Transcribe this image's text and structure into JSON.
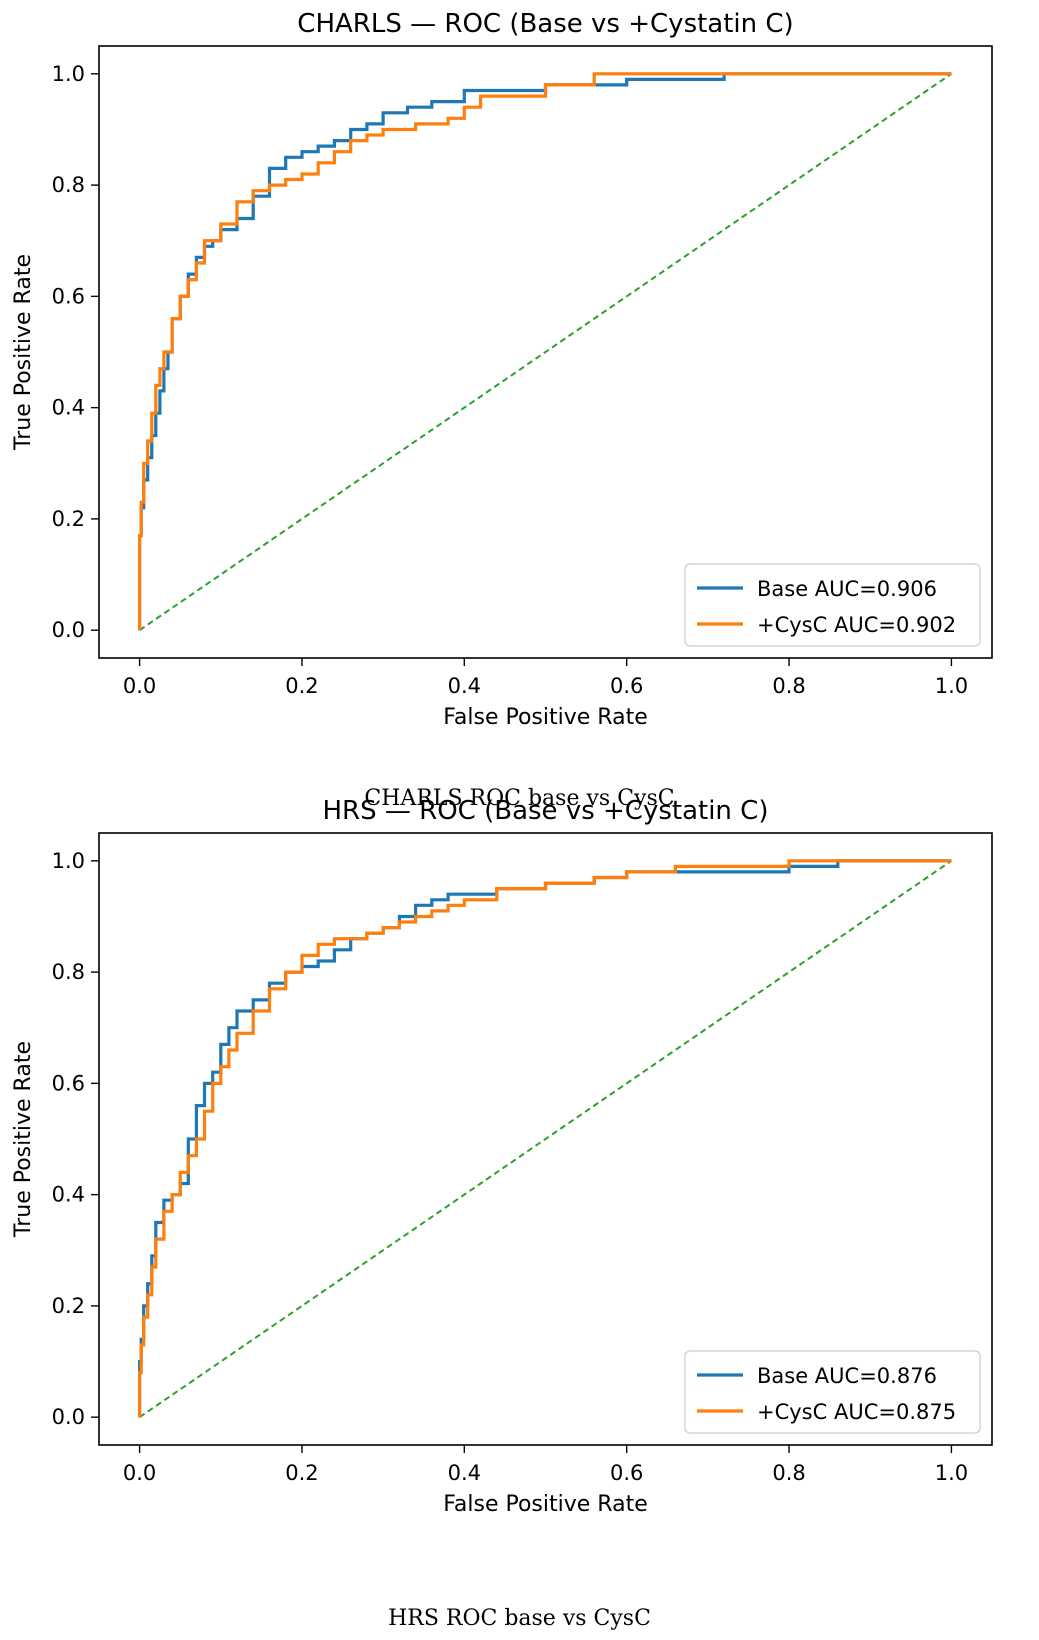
{
  "captions": [
    "CHARLS ROC base vs CysC",
    "HRS ROC base vs CysC"
  ],
  "colors": {
    "base": "#1f77b4",
    "cysc": "#ff7f0e",
    "chance": "#2ca02c"
  },
  "chart_data": [
    {
      "type": "line",
      "title": "CHARLS — ROC (Base vs +Cystatin C)",
      "xlabel": "False Positive Rate",
      "ylabel": "True Positive Rate",
      "xlim": [
        -0.05,
        1.05
      ],
      "ylim": [
        -0.05,
        1.05
      ],
      "xticks": [
        "0.0",
        "0.2",
        "0.4",
        "0.6",
        "0.8",
        "1.0"
      ],
      "yticks": [
        "0.0",
        "0.2",
        "0.4",
        "0.6",
        "0.8",
        "1.0"
      ],
      "legend_position": "lower-right",
      "series": [
        {
          "name": "Base AUC=0.906",
          "color_key": "base",
          "x": [
            0,
            0.002,
            0.005,
            0.01,
            0.015,
            0.02,
            0.025,
            0.03,
            0.035,
            0.04,
            0.05,
            0.06,
            0.07,
            0.08,
            0.09,
            0.1,
            0.12,
            0.14,
            0.16,
            0.18,
            0.2,
            0.22,
            0.24,
            0.26,
            0.28,
            0.3,
            0.33,
            0.36,
            0.4,
            0.44,
            0.5,
            0.56,
            0.6,
            0.66,
            0.72,
            0.8,
            0.86,
            0.92,
            1.0
          ],
          "y": [
            0,
            0.17,
            0.22,
            0.27,
            0.31,
            0.35,
            0.39,
            0.43,
            0.47,
            0.5,
            0.56,
            0.6,
            0.64,
            0.67,
            0.69,
            0.7,
            0.72,
            0.74,
            0.78,
            0.83,
            0.85,
            0.86,
            0.87,
            0.88,
            0.9,
            0.91,
            0.93,
            0.94,
            0.95,
            0.97,
            0.97,
            0.98,
            0.98,
            0.99,
            0.99,
            1.0,
            1.0,
            1.0,
            1.0
          ]
        },
        {
          "name": "+CysC AUC=0.902",
          "color_key": "cysc",
          "x": [
            0,
            0.002,
            0.005,
            0.01,
            0.015,
            0.02,
            0.025,
            0.03,
            0.04,
            0.05,
            0.06,
            0.07,
            0.08,
            0.1,
            0.12,
            0.14,
            0.16,
            0.18,
            0.2,
            0.22,
            0.24,
            0.26,
            0.28,
            0.3,
            0.34,
            0.38,
            0.4,
            0.42,
            0.44,
            0.5,
            0.56,
            0.58,
            0.6,
            0.7,
            0.8,
            0.9,
            1.0
          ],
          "y": [
            0,
            0.17,
            0.23,
            0.3,
            0.34,
            0.39,
            0.44,
            0.47,
            0.5,
            0.56,
            0.6,
            0.63,
            0.66,
            0.7,
            0.73,
            0.77,
            0.79,
            0.8,
            0.81,
            0.82,
            0.84,
            0.86,
            0.88,
            0.89,
            0.9,
            0.91,
            0.92,
            0.94,
            0.96,
            0.96,
            0.98,
            1.0,
            1.0,
            1.0,
            1.0,
            1.0,
            1.0
          ]
        },
        {
          "name": "chance",
          "color_key": "chance",
          "dashed": true,
          "x": [
            0,
            1
          ],
          "y": [
            0,
            1
          ]
        }
      ]
    },
    {
      "type": "line",
      "title": "HRS — ROC (Base vs +Cystatin C)",
      "xlabel": "False Positive Rate",
      "ylabel": "True Positive Rate",
      "xlim": [
        -0.05,
        1.05
      ],
      "ylim": [
        -0.05,
        1.05
      ],
      "xticks": [
        "0.0",
        "0.2",
        "0.4",
        "0.6",
        "0.8",
        "1.0"
      ],
      "yticks": [
        "0.0",
        "0.2",
        "0.4",
        "0.6",
        "0.8",
        "1.0"
      ],
      "legend_position": "lower-right",
      "series": [
        {
          "name": "Base AUC=0.876",
          "color_key": "base",
          "x": [
            0,
            0.002,
            0.005,
            0.01,
            0.015,
            0.02,
            0.03,
            0.04,
            0.05,
            0.06,
            0.07,
            0.08,
            0.09,
            0.1,
            0.11,
            0.12,
            0.14,
            0.16,
            0.18,
            0.2,
            0.22,
            0.24,
            0.26,
            0.28,
            0.3,
            0.32,
            0.34,
            0.36,
            0.38,
            0.4,
            0.44,
            0.5,
            0.56,
            0.6,
            0.7,
            0.8,
            0.86,
            0.9,
            1.0
          ],
          "y": [
            0,
            0.1,
            0.14,
            0.2,
            0.24,
            0.29,
            0.35,
            0.39,
            0.4,
            0.42,
            0.5,
            0.56,
            0.6,
            0.62,
            0.67,
            0.7,
            0.73,
            0.75,
            0.78,
            0.8,
            0.81,
            0.82,
            0.84,
            0.86,
            0.87,
            0.88,
            0.9,
            0.92,
            0.93,
            0.94,
            0.94,
            0.95,
            0.96,
            0.97,
            0.98,
            0.98,
            0.99,
            1.0,
            1.0
          ]
        },
        {
          "name": "+CysC AUC=0.875",
          "color_key": "cysc",
          "x": [
            0,
            0.002,
            0.005,
            0.01,
            0.015,
            0.02,
            0.03,
            0.04,
            0.05,
            0.06,
            0.07,
            0.08,
            0.09,
            0.1,
            0.11,
            0.12,
            0.14,
            0.16,
            0.18,
            0.2,
            0.22,
            0.24,
            0.26,
            0.28,
            0.3,
            0.32,
            0.34,
            0.36,
            0.38,
            0.4,
            0.44,
            0.5,
            0.56,
            0.6,
            0.66,
            0.7,
            0.8,
            0.9,
            1.0
          ],
          "y": [
            0,
            0.08,
            0.13,
            0.18,
            0.22,
            0.27,
            0.32,
            0.37,
            0.4,
            0.44,
            0.47,
            0.5,
            0.55,
            0.6,
            0.63,
            0.66,
            0.69,
            0.73,
            0.77,
            0.8,
            0.83,
            0.85,
            0.86,
            0.86,
            0.87,
            0.88,
            0.89,
            0.9,
            0.91,
            0.92,
            0.93,
            0.95,
            0.96,
            0.97,
            0.98,
            0.99,
            0.99,
            1.0,
            1.0
          ]
        },
        {
          "name": "chance",
          "color_key": "chance",
          "dashed": true,
          "x": [
            0,
            1
          ],
          "y": [
            0,
            1
          ]
        }
      ]
    }
  ]
}
